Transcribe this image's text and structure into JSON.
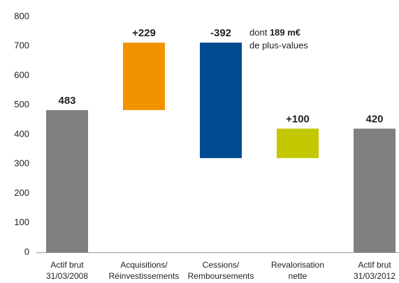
{
  "chart_data": {
    "type": "waterfall",
    "categories": [
      [
        "Actif brut",
        "31/03/2008"
      ],
      [
        "Acquisitions/",
        "Réinvestissements"
      ],
      [
        "Cessions/",
        "Remboursements"
      ],
      [
        "Revalorisation",
        "nette"
      ],
      [
        "Actif brut",
        "31/03/2012"
      ]
    ],
    "values": [
      483,
      229,
      -392,
      100,
      420
    ],
    "value_labels": [
      "483",
      "+229",
      "-392",
      "+100",
      "420"
    ],
    "measure": [
      "absolute",
      "relative",
      "relative",
      "relative",
      "absolute"
    ],
    "colors": [
      "#808080",
      "#f39200",
      "#004a8f",
      "#c3c800",
      "#808080"
    ],
    "annotation": [
      "dont",
      "189 m€",
      "de plus-values"
    ],
    "ylim": [
      0,
      800
    ],
    "yticks": [
      0,
      100,
      200,
      300,
      400,
      500,
      600,
      700,
      800
    ],
    "grid": false
  }
}
